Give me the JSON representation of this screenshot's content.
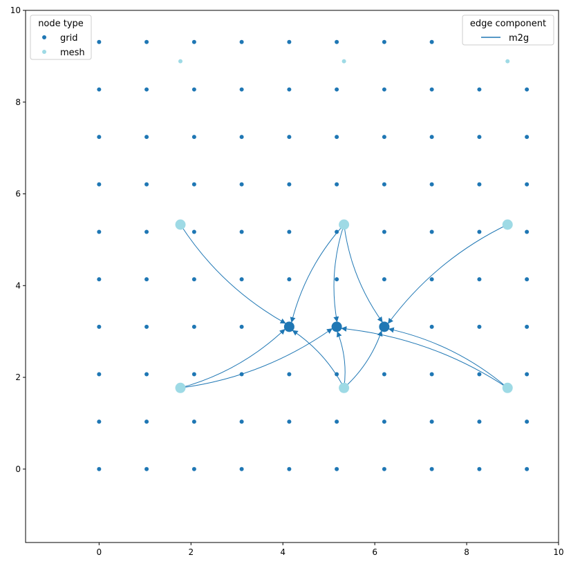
{
  "chart_data": {
    "type": "scatter",
    "xlim": [
      -1.6,
      10
    ],
    "ylim": [
      -1.6,
      10
    ],
    "xticks": [
      "0",
      "2",
      "4",
      "6",
      "8",
      "10"
    ],
    "yticks": [
      "0",
      "2",
      "4",
      "6",
      "8",
      "10"
    ],
    "grid": false,
    "series": [
      {
        "name": "grid",
        "color": "#1f77b4",
        "x_values": [
          0,
          1.034,
          2.069,
          3.103,
          4.138,
          5.172,
          6.207,
          7.241,
          8.276,
          9.31
        ],
        "y_values": [
          0,
          1.034,
          2.069,
          3.103,
          4.138,
          5.172,
          6.207,
          7.241,
          8.276,
          9.31
        ]
      },
      {
        "name": "mesh",
        "color": "#9edae5",
        "points": [
          {
            "x": 1.77,
            "y": 8.89
          },
          {
            "x": 5.33,
            "y": 8.89
          },
          {
            "x": 8.89,
            "y": 8.89
          },
          {
            "x": 1.77,
            "y": 5.33
          },
          {
            "x": 5.33,
            "y": 5.33
          },
          {
            "x": 8.89,
            "y": 5.33
          },
          {
            "x": 1.77,
            "y": 1.77
          },
          {
            "x": 5.33,
            "y": 1.77
          },
          {
            "x": 8.89,
            "y": 1.77
          }
        ],
        "highlighted_points": [
          {
            "x": 1.77,
            "y": 5.33
          },
          {
            "x": 5.33,
            "y": 5.33
          },
          {
            "x": 8.89,
            "y": 5.33
          },
          {
            "x": 1.77,
            "y": 1.77
          },
          {
            "x": 5.33,
            "y": 1.77
          },
          {
            "x": 8.89,
            "y": 1.77
          }
        ]
      }
    ],
    "highlighted_grid_nodes": [
      {
        "x": 4.138,
        "y": 3.103
      },
      {
        "x": 5.172,
        "y": 3.103
      },
      {
        "x": 6.207,
        "y": 3.103
      }
    ],
    "edges": {
      "name": "m2g",
      "color": "#1f77b4",
      "list": [
        {
          "from": [
            1.77,
            5.33
          ],
          "to": [
            4.138,
            3.103
          ]
        },
        {
          "from": [
            5.33,
            5.33
          ],
          "to": [
            4.138,
            3.103
          ]
        },
        {
          "from": [
            1.77,
            1.77
          ],
          "to": [
            4.138,
            3.103
          ]
        },
        {
          "from": [
            5.33,
            1.77
          ],
          "to": [
            4.138,
            3.103
          ]
        },
        {
          "from": [
            5.33,
            5.33
          ],
          "to": [
            5.172,
            3.103
          ]
        },
        {
          "from": [
            1.77,
            1.77
          ],
          "to": [
            5.172,
            3.103
          ]
        },
        {
          "from": [
            5.33,
            1.77
          ],
          "to": [
            5.172,
            3.103
          ]
        },
        {
          "from": [
            8.89,
            1.77
          ],
          "to": [
            5.172,
            3.103
          ]
        },
        {
          "from": [
            5.33,
            5.33
          ],
          "to": [
            6.207,
            3.103
          ]
        },
        {
          "from": [
            8.89,
            5.33
          ],
          "to": [
            6.207,
            3.103
          ]
        },
        {
          "from": [
            5.33,
            1.77
          ],
          "to": [
            6.207,
            3.103
          ]
        },
        {
          "from": [
            8.89,
            1.77
          ],
          "to": [
            6.207,
            3.103
          ]
        }
      ]
    },
    "legends": [
      {
        "title": "node type",
        "placement": "top-left",
        "entries": [
          {
            "label": "grid",
            "kind": "dot",
            "color": "#1f77b4"
          },
          {
            "label": "mesh",
            "kind": "dot",
            "color": "#9edae5"
          }
        ]
      },
      {
        "title": "edge component",
        "placement": "top-right",
        "entries": [
          {
            "label": "m2g",
            "kind": "line",
            "color": "#1f77b4"
          }
        ]
      }
    ]
  }
}
